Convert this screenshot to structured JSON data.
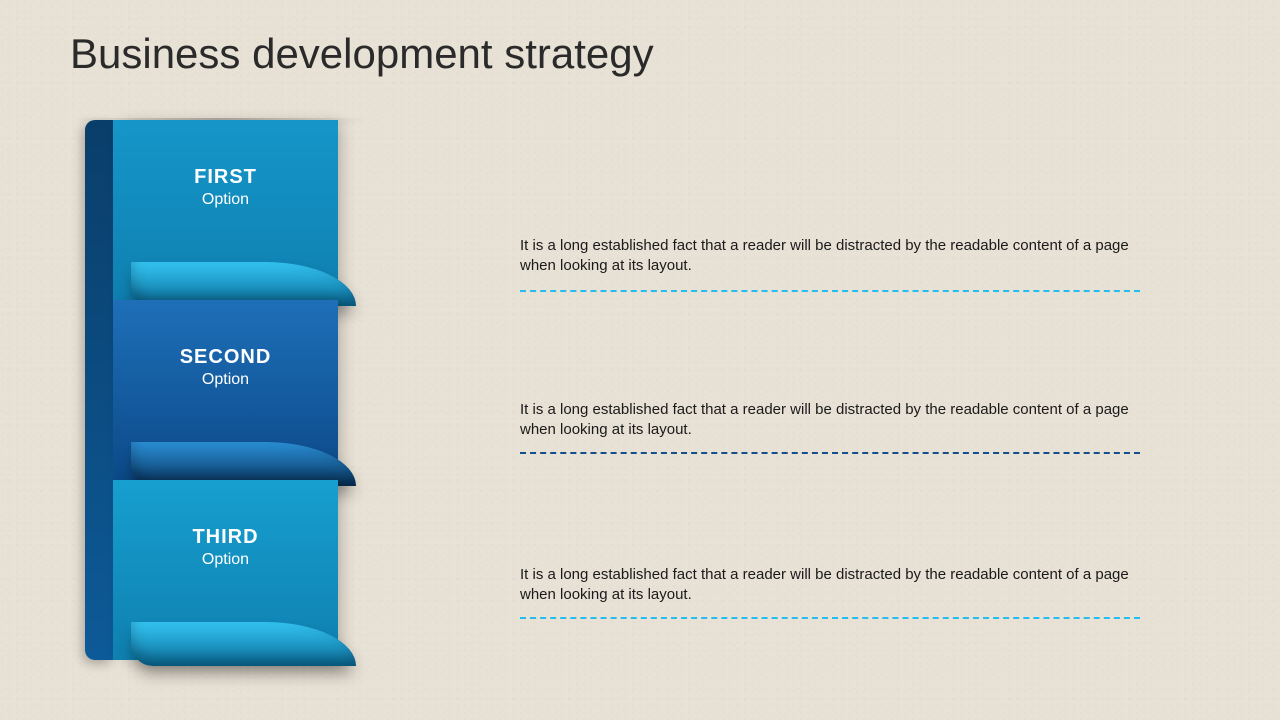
{
  "title": "Business development strategy",
  "title_color": "#2a2a2a",
  "title_fontsize": 42,
  "background_color": "#e8e1d5",
  "ribbon": {
    "spine_gradient": {
      "from": "#0a3e6a",
      "to": "#0d5a98"
    },
    "segments": [
      {
        "title": "FIRST",
        "subtitle": "Option",
        "bg_from": "#1596c9",
        "bg_to": "#0f80b0",
        "curl_from": "#34c4f2",
        "curl_to": "#0a6f9c",
        "dash_color": "#23bdf0",
        "desc": "It is a long established fact that a reader will be distracted by the readable content of a page when looking at its layout."
      },
      {
        "title": "SECOND",
        "subtitle": "Option",
        "bg_from": "#1e6fb8",
        "bg_to": "#0c4a89",
        "curl_from": "#2a8fd6",
        "curl_to": "#08345f",
        "dash_color": "#134f8c",
        "desc": "It is a long established fact that a reader will be distracted by the readable content of a page when looking at its layout."
      },
      {
        "title": "THIRD",
        "subtitle": "Option",
        "bg_from": "#169fcf",
        "bg_to": "#0f80b0",
        "curl_from": "#34c4f2",
        "curl_to": "#0a6f9c",
        "dash_color": "#23bdf0",
        "desc": "It is a long established fact that a reader will be distracted by the readable content of a page when looking at its layout."
      }
    ]
  },
  "desc_fontsize": 15,
  "desc_color": "#1a1a1a",
  "layout": {
    "desc_tops": [
      236,
      400,
      565
    ],
    "dash_tops": [
      290,
      452,
      617
    ],
    "seg_tops": [
      0,
      180,
      360
    ]
  }
}
